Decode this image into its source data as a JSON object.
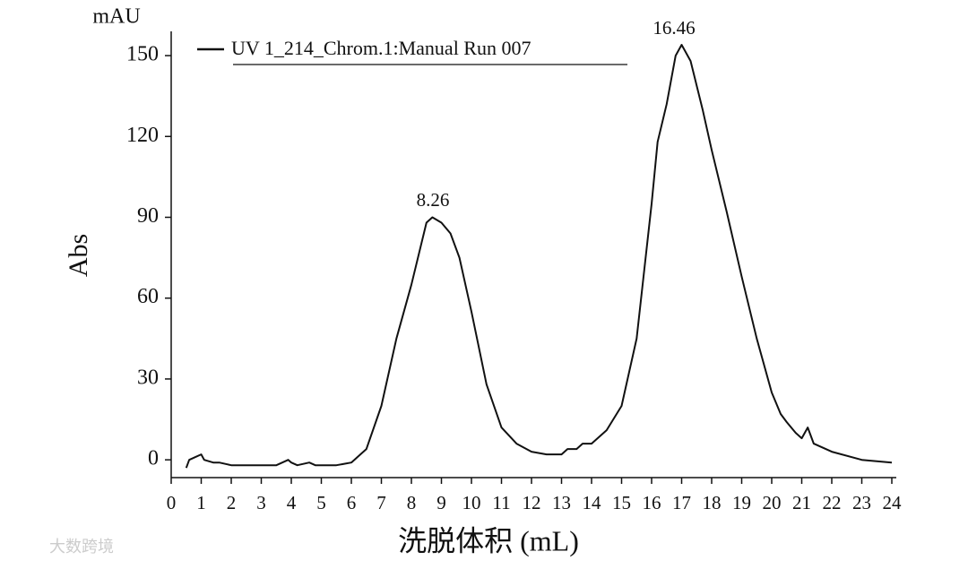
{
  "chart_data": {
    "type": "line",
    "y_unit": "mAU",
    "ylabel": "Abs",
    "xlabel": "洗脱体积 (mL)",
    "annotations": [
      "8.26",
      "16.46"
    ],
    "watermark": "大数跨境",
    "xlim": [
      0,
      24
    ],
    "ylim": [
      -6.6,
      159
    ],
    "xticks": [
      0,
      1,
      2,
      3,
      4,
      5,
      6,
      7,
      8,
      9,
      10,
      11,
      12,
      13,
      14,
      15,
      16,
      17,
      18,
      19,
      20,
      21,
      22,
      23,
      24
    ],
    "yticks": [
      0,
      30,
      60,
      90,
      120,
      150
    ],
    "series": [
      {
        "name": "UV 1_214_Chrom.1:Manual Run 007",
        "color": "#111111",
        "x": [
          0.5,
          0.6,
          1.0,
          1.1,
          1.4,
          1.6,
          2.0,
          2.5,
          3.0,
          3.5,
          3.9,
          4.0,
          4.2,
          4.6,
          4.8,
          5.0,
          5.5,
          6.0,
          6.5,
          7.0,
          7.5,
          8.0,
          8.5,
          8.7,
          9.0,
          9.3,
          9.6,
          10.0,
          10.5,
          11.0,
          11.5,
          12.0,
          12.5,
          13.0,
          13.2,
          13.5,
          13.7,
          14.0,
          14.5,
          15.0,
          15.5,
          16.0,
          16.2,
          16.5,
          16.8,
          17.0,
          17.3,
          17.7,
          18.0,
          18.5,
          19.0,
          19.5,
          20.0,
          20.3,
          20.5,
          20.8,
          21.0,
          21.2,
          21.4,
          22.0,
          23.0,
          24.0
        ],
        "values": [
          -3,
          0,
          2,
          0,
          -1,
          -1,
          -2,
          -2,
          -2,
          -2,
          0,
          -1,
          -2,
          -1,
          -2,
          -2,
          -2,
          -1,
          4,
          20,
          45,
          65,
          88,
          90,
          88,
          84,
          75,
          55,
          28,
          12,
          6,
          3,
          2,
          2,
          4,
          4,
          6,
          6,
          11,
          20,
          45,
          95,
          118,
          132,
          150,
          154,
          148,
          130,
          115,
          92,
          68,
          45,
          25,
          17,
          14,
          10,
          8,
          12,
          6,
          3,
          0,
          -1
        ]
      }
    ]
  }
}
